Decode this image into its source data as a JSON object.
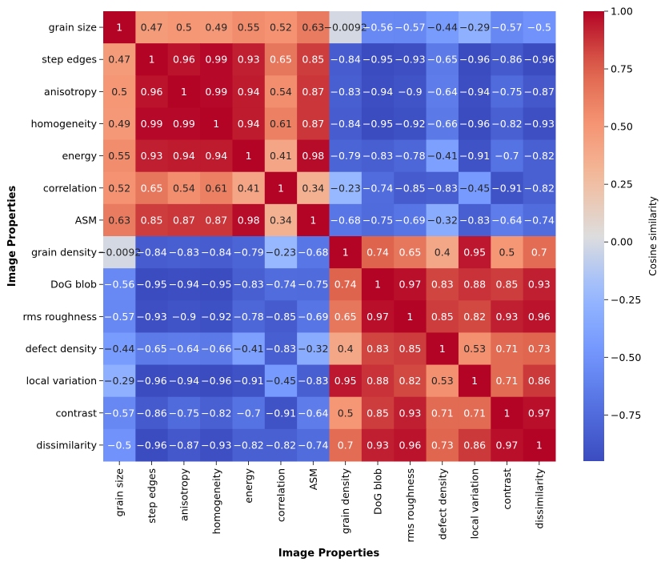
{
  "chart_data": {
    "type": "heatmap",
    "title": "",
    "xlabel": "Image Properties",
    "ylabel": "Image Properties",
    "colorbar_label": "Cosine similarity",
    "colorbar_range": [
      -0.95,
      1.0
    ],
    "colorbar_ticks": [
      1.0,
      0.75,
      0.5,
      0.25,
      0.0,
      -0.25,
      -0.5,
      -0.75
    ],
    "colorbar_tick_labels": [
      "1.00",
      "0.75",
      "0.50",
      "0.25",
      "0.00",
      "−0.25",
      "−0.50",
      "−0.75"
    ],
    "colormap": "coolwarm",
    "categories": [
      "grain size",
      "step edges",
      "anisotropy",
      "homogeneity",
      "energy",
      "correlation",
      "ASM",
      "grain density",
      "DoG blob",
      "rms roughness",
      "defect density",
      "local variation",
      "contrast",
      "dissimilarity"
    ],
    "values": [
      [
        1,
        0.47,
        0.5,
        0.49,
        0.55,
        0.52,
        0.63,
        -0.0092,
        -0.56,
        -0.57,
        -0.44,
        -0.29,
        -0.57,
        -0.5
      ],
      [
        0.47,
        1,
        0.96,
        0.99,
        0.93,
        0.65,
        0.85,
        -0.84,
        -0.95,
        -0.93,
        -0.65,
        -0.96,
        -0.86,
        -0.96
      ],
      [
        0.5,
        0.96,
        1,
        0.99,
        0.94,
        0.54,
        0.87,
        -0.83,
        -0.94,
        -0.9,
        -0.64,
        -0.94,
        -0.75,
        -0.87
      ],
      [
        0.49,
        0.99,
        0.99,
        1,
        0.94,
        0.61,
        0.87,
        -0.84,
        -0.95,
        -0.92,
        -0.66,
        -0.96,
        -0.82,
        -0.93
      ],
      [
        0.55,
        0.93,
        0.94,
        0.94,
        1,
        0.41,
        0.98,
        -0.79,
        -0.83,
        -0.78,
        -0.41,
        -0.91,
        -0.7,
        -0.82
      ],
      [
        0.52,
        0.65,
        0.54,
        0.61,
        0.41,
        1,
        0.34,
        -0.23,
        -0.74,
        -0.85,
        -0.83,
        -0.45,
        -0.91,
        -0.82
      ],
      [
        0.63,
        0.85,
        0.87,
        0.87,
        0.98,
        0.34,
        1,
        -0.68,
        -0.75,
        -0.69,
        -0.32,
        -0.83,
        -0.64,
        -0.74
      ],
      [
        -0.0092,
        -0.84,
        -0.83,
        -0.84,
        -0.79,
        -0.23,
        -0.68,
        1,
        0.74,
        0.65,
        0.4,
        0.95,
        0.5,
        0.7
      ],
      [
        -0.56,
        -0.95,
        -0.94,
        -0.95,
        -0.83,
        -0.74,
        -0.75,
        0.74,
        1,
        0.97,
        0.83,
        0.88,
        0.85,
        0.93
      ],
      [
        -0.57,
        -0.93,
        -0.9,
        -0.92,
        -0.78,
        -0.85,
        -0.69,
        0.65,
        0.97,
        1,
        0.85,
        0.82,
        0.93,
        0.96
      ],
      [
        -0.44,
        -0.65,
        -0.64,
        -0.66,
        -0.41,
        -0.83,
        -0.32,
        0.4,
        0.83,
        0.85,
        1,
        0.53,
        0.71,
        0.73
      ],
      [
        -0.29,
        -0.96,
        -0.94,
        -0.96,
        -0.91,
        -0.45,
        -0.83,
        0.95,
        0.88,
        0.82,
        0.53,
        1,
        0.71,
        0.86
      ],
      [
        -0.57,
        -0.86,
        -0.75,
        -0.82,
        -0.7,
        -0.91,
        -0.64,
        0.5,
        0.85,
        0.93,
        0.71,
        0.71,
        1,
        0.97
      ],
      [
        -0.5,
        -0.96,
        -0.87,
        -0.93,
        -0.82,
        -0.82,
        -0.74,
        0.7,
        0.93,
        0.96,
        0.73,
        0.86,
        0.97,
        1
      ]
    ]
  }
}
